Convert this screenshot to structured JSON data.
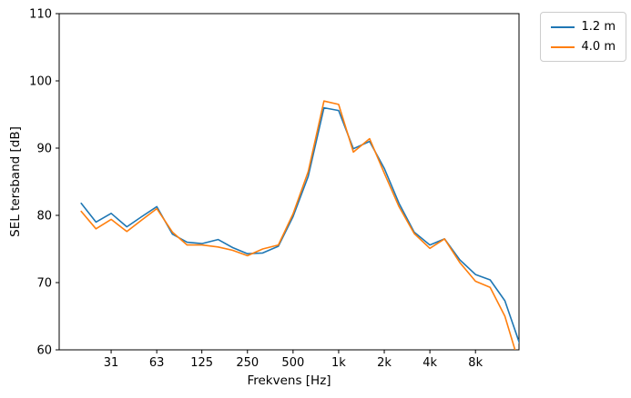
{
  "figure": {
    "background": "#ffffff",
    "frame_color": "#000000"
  },
  "chart_data": {
    "type": "line",
    "title": "",
    "xlabel": "Frekvens [Hz]",
    "ylabel": "SEL tersband [dB]",
    "xscale": "log",
    "grid": false,
    "legend_position": "outside upper right",
    "xlim": [
      14.3,
      15500
    ],
    "ylim": [
      60,
      110
    ],
    "yticks": [
      60,
      70,
      80,
      90,
      100,
      110
    ],
    "xticks": [
      {
        "value": 31.5,
        "label": "31"
      },
      {
        "value": 63,
        "label": "63"
      },
      {
        "value": 125,
        "label": "125"
      },
      {
        "value": 250,
        "label": "250"
      },
      {
        "value": 500,
        "label": "500"
      },
      {
        "value": 1000,
        "label": "1k"
      },
      {
        "value": 2000,
        "label": "2k"
      },
      {
        "value": 4000,
        "label": "4k"
      },
      {
        "value": 8000,
        "label": "8k"
      }
    ],
    "x": [
      20,
      25,
      31.5,
      40,
      50,
      63,
      80,
      100,
      125,
      160,
      200,
      250,
      315,
      400,
      500,
      630,
      800,
      1000,
      1250,
      1600,
      2000,
      2500,
      3150,
      4000,
      5000,
      6300,
      8000,
      10000,
      12500,
      16000
    ],
    "series": [
      {
        "name": "1.2 m",
        "color": "#1f77b4",
        "values": [
          81.8,
          79.0,
          80.3,
          78.3,
          79.8,
          81.3,
          77.2,
          76.0,
          75.8,
          76.4,
          75.2,
          74.3,
          74.4,
          75.4,
          79.8,
          85.8,
          96.0,
          95.6,
          89.9,
          91.0,
          87.0,
          81.8,
          77.5,
          75.6,
          76.5,
          73.4,
          71.2,
          70.4,
          67.3,
          60.3
        ]
      },
      {
        "name": "4.0 m",
        "color": "#ff7f0e",
        "values": [
          80.6,
          78.0,
          79.4,
          77.6,
          79.3,
          81.0,
          77.5,
          75.6,
          75.6,
          75.3,
          74.8,
          74.0,
          75.0,
          75.6,
          80.2,
          86.5,
          97.0,
          96.5,
          89.4,
          91.4,
          86.3,
          81.3,
          77.3,
          75.1,
          76.5,
          73.0,
          70.2,
          69.3,
          65.0,
          57.0
        ]
      }
    ]
  }
}
